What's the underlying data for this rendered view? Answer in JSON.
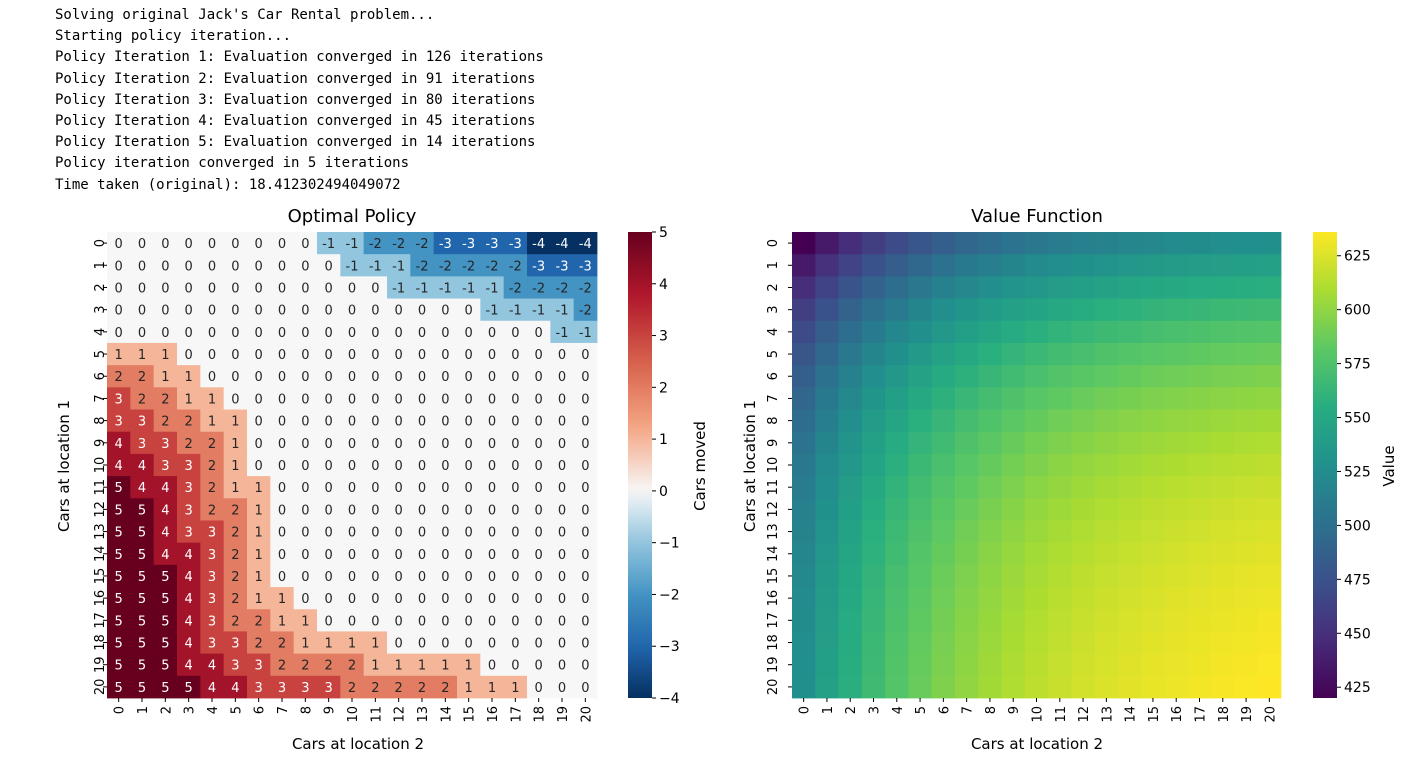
{
  "console": {
    "lines": [
      "Solving original Jack's Car Rental problem...",
      "Starting policy iteration...",
      "Policy Iteration 1: Evaluation converged in 126 iterations",
      "Policy Iteration 2: Evaluation converged in 91 iterations",
      "Policy Iteration 3: Evaluation converged in 80 iterations",
      "Policy Iteration 4: Evaluation converged in 45 iterations",
      "Policy Iteration 5: Evaluation converged in 14 iterations",
      "Policy iteration converged in 5 iterations",
      "Time taken (original): 18.412302494049072"
    ]
  },
  "chart_data": [
    {
      "type": "heatmap",
      "title": "Optimal Policy",
      "xlabel": "Cars at location 2",
      "ylabel": "Cars at location 1",
      "x_ticks": [
        "0",
        "1",
        "2",
        "3",
        "4",
        "5",
        "6",
        "7",
        "8",
        "9",
        "10",
        "11",
        "12",
        "13",
        "14",
        "15",
        "16",
        "17",
        "18",
        "19",
        "20"
      ],
      "y_ticks": [
        "0",
        "1",
        "2",
        "3",
        "4",
        "5",
        "6",
        "7",
        "8",
        "9",
        "10",
        "11",
        "12",
        "13",
        "14",
        "15",
        "16",
        "17",
        "18",
        "19",
        "20"
      ],
      "colormap": "RdBu_r",
      "annotated": true,
      "colorbar": {
        "label": "Cars moved",
        "range": [
          -4,
          5
        ],
        "ticks": [
          "5",
          "4",
          "3",
          "2",
          "1",
          "0",
          "−1",
          "−2",
          "−3",
          "−4"
        ]
      },
      "values": [
        [
          0,
          0,
          0,
          0,
          0,
          0,
          0,
          0,
          0,
          -1,
          -1,
          -2,
          -2,
          -2,
          -3,
          -3,
          -3,
          -3,
          -4,
          -4,
          -4
        ],
        [
          0,
          0,
          0,
          0,
          0,
          0,
          0,
          0,
          0,
          0,
          -1,
          -1,
          -1,
          -2,
          -2,
          -2,
          -2,
          -2,
          -3,
          -3,
          -3
        ],
        [
          0,
          0,
          0,
          0,
          0,
          0,
          0,
          0,
          0,
          0,
          0,
          0,
          -1,
          -1,
          -1,
          -1,
          -1,
          -2,
          -2,
          -2,
          -2
        ],
        [
          0,
          0,
          0,
          0,
          0,
          0,
          0,
          0,
          0,
          0,
          0,
          0,
          0,
          0,
          0,
          0,
          -1,
          -1,
          -1,
          -1,
          -2
        ],
        [
          0,
          0,
          0,
          0,
          0,
          0,
          0,
          0,
          0,
          0,
          0,
          0,
          0,
          0,
          0,
          0,
          0,
          0,
          0,
          -1,
          -1
        ],
        [
          1,
          1,
          1,
          0,
          0,
          0,
          0,
          0,
          0,
          0,
          0,
          0,
          0,
          0,
          0,
          0,
          0,
          0,
          0,
          0,
          0
        ],
        [
          2,
          2,
          1,
          1,
          0,
          0,
          0,
          0,
          0,
          0,
          0,
          0,
          0,
          0,
          0,
          0,
          0,
          0,
          0,
          0,
          0
        ],
        [
          3,
          2,
          2,
          1,
          1,
          0,
          0,
          0,
          0,
          0,
          0,
          0,
          0,
          0,
          0,
          0,
          0,
          0,
          0,
          0,
          0
        ],
        [
          3,
          3,
          2,
          2,
          1,
          1,
          0,
          0,
          0,
          0,
          0,
          0,
          0,
          0,
          0,
          0,
          0,
          0,
          0,
          0,
          0
        ],
        [
          4,
          3,
          3,
          2,
          2,
          1,
          0,
          0,
          0,
          0,
          0,
          0,
          0,
          0,
          0,
          0,
          0,
          0,
          0,
          0,
          0
        ],
        [
          4,
          4,
          3,
          3,
          2,
          1,
          0,
          0,
          0,
          0,
          0,
          0,
          0,
          0,
          0,
          0,
          0,
          0,
          0,
          0,
          0
        ],
        [
          5,
          4,
          4,
          3,
          2,
          1,
          1,
          0,
          0,
          0,
          0,
          0,
          0,
          0,
          0,
          0,
          0,
          0,
          0,
          0,
          0
        ],
        [
          5,
          5,
          4,
          3,
          2,
          2,
          1,
          0,
          0,
          0,
          0,
          0,
          0,
          0,
          0,
          0,
          0,
          0,
          0,
          0,
          0
        ],
        [
          5,
          5,
          4,
          3,
          3,
          2,
          1,
          0,
          0,
          0,
          0,
          0,
          0,
          0,
          0,
          0,
          0,
          0,
          0,
          0,
          0
        ],
        [
          5,
          5,
          4,
          4,
          3,
          2,
          1,
          0,
          0,
          0,
          0,
          0,
          0,
          0,
          0,
          0,
          0,
          0,
          0,
          0,
          0
        ],
        [
          5,
          5,
          5,
          4,
          3,
          2,
          1,
          0,
          0,
          0,
          0,
          0,
          0,
          0,
          0,
          0,
          0,
          0,
          0,
          0,
          0
        ],
        [
          5,
          5,
          5,
          4,
          3,
          2,
          1,
          1,
          0,
          0,
          0,
          0,
          0,
          0,
          0,
          0,
          0,
          0,
          0,
          0,
          0
        ],
        [
          5,
          5,
          5,
          4,
          3,
          2,
          2,
          1,
          1,
          0,
          0,
          0,
          0,
          0,
          0,
          0,
          0,
          0,
          0,
          0,
          0
        ],
        [
          5,
          5,
          5,
          4,
          3,
          3,
          2,
          2,
          1,
          1,
          1,
          1,
          0,
          0,
          0,
          0,
          0,
          0,
          0,
          0,
          0
        ],
        [
          5,
          5,
          5,
          4,
          4,
          3,
          3,
          2,
          2,
          2,
          2,
          1,
          1,
          1,
          1,
          1,
          0,
          0,
          0,
          0,
          0
        ],
        [
          5,
          5,
          5,
          5,
          4,
          4,
          3,
          3,
          3,
          3,
          2,
          2,
          2,
          2,
          2,
          1,
          1,
          1,
          0,
          0,
          0
        ]
      ]
    },
    {
      "type": "heatmap",
      "title": "Value Function",
      "xlabel": "Cars at location 2",
      "ylabel": "Cars at location 1",
      "x_ticks": [
        "0",
        "1",
        "2",
        "3",
        "4",
        "5",
        "6",
        "7",
        "8",
        "9",
        "10",
        "11",
        "12",
        "13",
        "14",
        "15",
        "16",
        "17",
        "18",
        "19",
        "20"
      ],
      "y_ticks": [
        "0",
        "1",
        "2",
        "3",
        "4",
        "5",
        "6",
        "7",
        "8",
        "9",
        "10",
        "11",
        "12",
        "13",
        "14",
        "15",
        "16",
        "17",
        "18",
        "19",
        "20"
      ],
      "colormap": "viridis",
      "annotated": false,
      "colorbar": {
        "label": "Value",
        "range": [
          420,
          636
        ],
        "ticks": [
          "625",
          "600",
          "575",
          "550",
          "525",
          "500",
          "475",
          "450",
          "425"
        ]
      },
      "value_model": {
        "base": 420,
        "max": 636,
        "pattern": "value rises from 420 at (0,0) toward 636 at (20,20), saturating with cars at both locations"
      }
    }
  ]
}
